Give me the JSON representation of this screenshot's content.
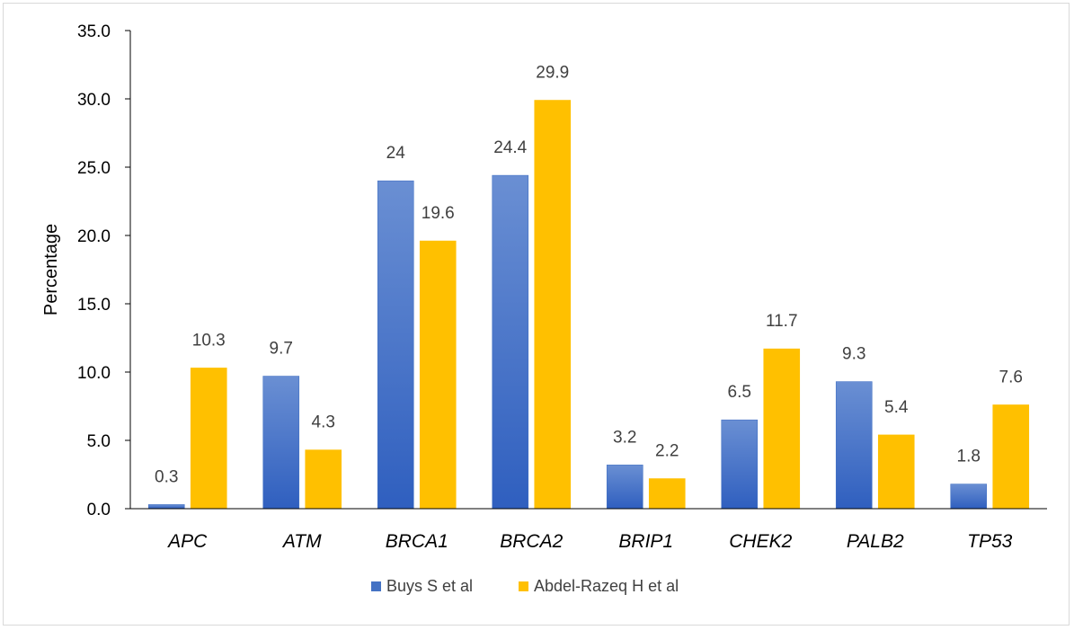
{
  "chart_data": {
    "type": "bar",
    "title": "",
    "xlabel": "",
    "ylabel": "Percentage",
    "ylim": [
      0,
      35
    ],
    "yticks": [
      "0.0",
      "5.0",
      "10.0",
      "15.0",
      "20.0",
      "25.0",
      "30.0",
      "35.0"
    ],
    "grid": false,
    "legend_position": "bottom",
    "categories": [
      "APC",
      "ATM",
      "BRCA1",
      "BRCA2",
      "BRIP1",
      "CHEK2",
      "PALB2",
      "TP53"
    ],
    "series": [
      {
        "name": "Buys S et al",
        "color": "#4472C4",
        "values": [
          0.3,
          9.7,
          24,
          24.4,
          3.2,
          6.5,
          9.3,
          1.8
        ],
        "labels": [
          "0.3",
          "9.7",
          "24",
          "24.4",
          "3.2",
          "6.5",
          "9.3",
          "1.8"
        ]
      },
      {
        "name": "Abdel-Razeq H et al",
        "color": "#FFC000",
        "values": [
          10.3,
          4.3,
          19.6,
          29.9,
          2.2,
          11.7,
          5.4,
          7.6
        ],
        "labels": [
          "10.3",
          "4.3",
          "19.6",
          "29.9",
          "2.2",
          "11.7",
          "5.4",
          "7.6"
        ]
      }
    ]
  }
}
